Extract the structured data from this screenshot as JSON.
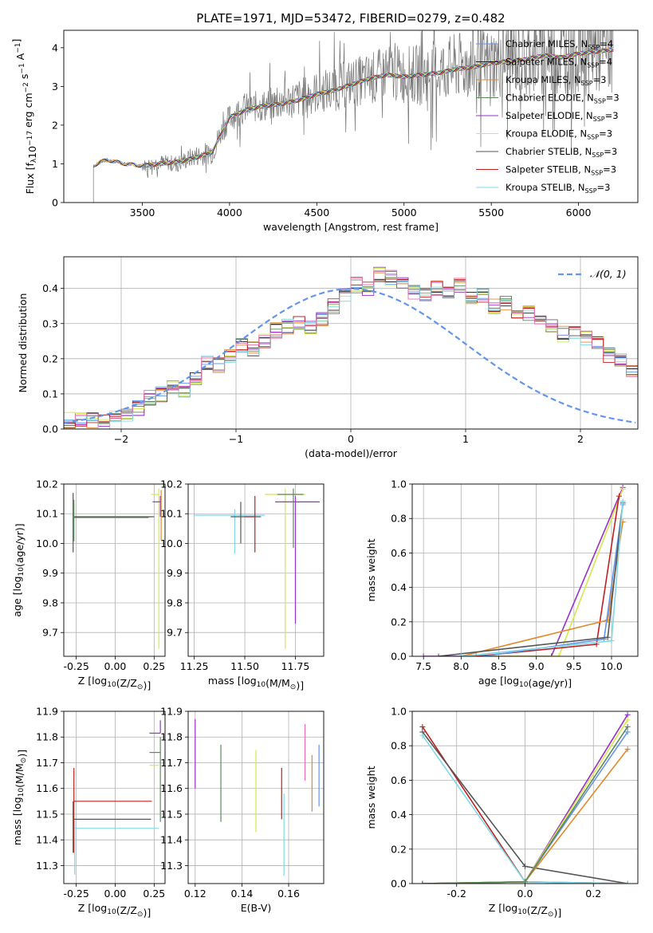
{
  "figure": {
    "title": "PLATE=1971, MJD=53472, FIBERID=0279, z=0.482",
    "colors": [
      "#6495ED",
      "#1a1a1a",
      "#e08a2c",
      "#5a8a5a",
      "#9a30c8",
      "#d4e84a",
      "#666666",
      "#c02020",
      "#80d8e8",
      "#e870b0"
    ]
  },
  "chart_data": [
    {
      "id": "spectrum",
      "type": "line",
      "title": "PLATE=1971, MJD=53472, FIBERID=0279, z=0.482",
      "xlabel": "wavelength [Angstrom, rest frame]",
      "ylabel": "Flux [f_λ 10^-17 erg cm^-2 s^-1 A^-1]",
      "xlim": [
        3050,
        6340
      ],
      "ylim": [
        0,
        4.45
      ],
      "xticks": [
        3500,
        4000,
        4500,
        5000,
        5500,
        6000
      ],
      "yticks": [
        0,
        1,
        2,
        3,
        4
      ],
      "legend_placement": "upper-right",
      "legend": [
        "Chabrier MILES, N_SSP=4",
        "Salpeter MILES, N_SSP=4",
        "Kroupa MILES, N_SSP=3",
        "Chabrier ELODIE, N_SSP=3",
        "Salpeter ELODIE, N_SSP=3",
        "Kroupa ELODIE, N_SSP=3",
        "Chabrier STELIB, N_SSP=3",
        "Salpeter STELIB, N_SSP=3",
        "Kroupa STELIB, N_SSP=3"
      ],
      "legend_colors": [
        "#6495ED",
        "#1a1a1a",
        "#e08a2c",
        "#5a8a5a",
        "#9a30c8",
        "#d4e84a",
        "#555555",
        "#c02020",
        "#80d8e8"
      ],
      "model_curve": {
        "x": [
          3220,
          3260,
          3300,
          3400,
          3500,
          3600,
          3700,
          3800,
          3900,
          3950,
          4000,
          4100,
          4200,
          4300,
          4400,
          4500,
          4600,
          4700,
          4800,
          4900,
          5000,
          5100,
          5200,
          5300,
          5400,
          5500,
          5600,
          5700,
          5800,
          5900,
          6000,
          6100,
          6200
        ],
        "y": [
          0.95,
          1.05,
          1.1,
          1.0,
          0.95,
          1.0,
          1.05,
          1.15,
          1.3,
          1.75,
          2.2,
          2.4,
          2.5,
          2.55,
          2.65,
          2.8,
          2.9,
          3.05,
          3.2,
          3.3,
          3.25,
          3.3,
          3.35,
          3.45,
          3.5,
          3.6,
          3.65,
          3.7,
          3.8,
          3.75,
          3.85,
          3.9,
          3.95
        ]
      },
      "data_curve": {
        "x": [
          3220,
          3260,
          3300,
          3400,
          3500,
          3600,
          3700,
          3800,
          3900,
          3950,
          4000,
          4100,
          4200,
          4300,
          4400,
          4500,
          4600,
          4700,
          4800,
          4900,
          5000,
          5100,
          5200,
          5300,
          5400,
          5500,
          5600,
          5700,
          5800,
          5900,
          6000,
          6100,
          6200
        ],
        "y": [
          0.95,
          1.05,
          1.1,
          1.0,
          0.95,
          1.05,
          1.0,
          1.2,
          1.3,
          1.8,
          2.2,
          2.45,
          2.5,
          2.6,
          2.7,
          2.85,
          2.95,
          3.1,
          3.2,
          3.35,
          3.3,
          3.3,
          3.4,
          3.5,
          3.55,
          3.6,
          3.7,
          3.75,
          3.8,
          3.8,
          3.9,
          3.95,
          4.0
        ],
        "noise_start": 3500
      }
    },
    {
      "id": "residuals",
      "type": "step",
      "xlabel": "(data-model)/error",
      "ylabel": "Normed distribution",
      "xlim": [
        -2.5,
        2.5
      ],
      "ylim": [
        0,
        0.49
      ],
      "xticks": [
        -2,
        -1,
        0,
        1,
        2
      ],
      "yticks": [
        0.0,
        0.1,
        0.2,
        0.3,
        0.4
      ],
      "legend": [
        "𝒩(0, 1)"
      ],
      "bin_width": 0.1,
      "base_histogram": {
        "x_start": -2.5,
        "values": [
          0.025,
          0.03,
          0.025,
          0.02,
          0.035,
          0.04,
          0.06,
          0.09,
          0.1,
          0.12,
          0.11,
          0.14,
          0.19,
          0.18,
          0.21,
          0.24,
          0.23,
          0.25,
          0.28,
          0.29,
          0.3,
          0.29,
          0.31,
          0.35,
          0.38,
          0.41,
          0.4,
          0.44,
          0.43,
          0.41,
          0.39,
          0.38,
          0.4,
          0.39,
          0.41,
          0.37,
          0.38,
          0.35,
          0.36,
          0.33,
          0.33,
          0.3,
          0.29,
          0.27,
          0.28,
          0.26,
          0.25,
          0.21,
          0.2,
          0.17,
          0.16,
          0.13,
          0.13,
          0.12,
          0.1,
          0.09,
          0.07,
          0.08,
          0.06,
          0.05,
          0.04,
          0.035,
          0.03,
          0.025,
          0.02,
          0.02,
          0.02,
          0.025,
          0.03,
          0.025
        ]
      }
    },
    {
      "id": "z-vs-age",
      "type": "errorbar",
      "xlabel": "Z [log10(Z/Z⊙)]",
      "ylabel": "age  [log10(age/yr)]",
      "xlim": [
        -0.33,
        0.32
      ],
      "ylim": [
        9.62,
        10.2
      ],
      "xticks": [
        -0.25,
        0.0,
        0.25
      ],
      "yticks": [
        9.7,
        9.8,
        9.9,
        10.0,
        10.1,
        10.2
      ],
      "points": [
        {
          "x": -0.27,
          "y": 10.09,
          "xerr": [
            0.0,
            0.52
          ],
          "yerr": [
            0.12,
            0.08
          ],
          "color": "#555555"
        },
        {
          "x": -0.265,
          "y": 10.087,
          "xerr": [
            0.0,
            0.48
          ],
          "yerr": [
            0.08,
            0.06
          ],
          "color": "#5a8a5a"
        },
        {
          "x": 0.28,
          "y": 10.165,
          "xerr": [
            0.05,
            0.0
          ],
          "yerr": [
            0.52,
            0.02
          ],
          "color": "#d4e84a"
        },
        {
          "x": 0.29,
          "y": 10.14,
          "xerr": [
            0.05,
            0.0
          ],
          "yerr": [
            0.05,
            0.02
          ],
          "color": "#9a30c8"
        },
        {
          "x": 0.295,
          "y": 10.16,
          "xerr": [
            0.0,
            0.0
          ],
          "yerr": [
            0.15,
            0.02
          ],
          "color": "#e08a2c"
        }
      ]
    },
    {
      "id": "mass-vs-age",
      "type": "errorbar",
      "xlabel": "mass [log10(M/M⊙)]",
      "ylabel": "",
      "xlim": [
        11.22,
        11.89
      ],
      "ylim": [
        9.62,
        10.2
      ],
      "xticks": [
        11.25,
        11.5,
        11.75
      ],
      "yticks": [
        9.7,
        9.8,
        9.9,
        10.0,
        10.1,
        10.2
      ],
      "points": [
        {
          "x": 11.45,
          "y": 10.095,
          "xerr": [
            0.2,
            0.15
          ],
          "yerr": [
            0.13,
            0.02
          ],
          "color": "#80d8e8"
        },
        {
          "x": 11.48,
          "y": 10.09,
          "xerr": [
            0.05,
            0.1
          ],
          "yerr": [
            0.09,
            0.05
          ],
          "color": "#555555"
        },
        {
          "x": 11.55,
          "y": 10.09,
          "xerr": [
            0.05,
            0.0
          ],
          "yerr": [
            0.12,
            0.07
          ],
          "color": "#c02020"
        },
        {
          "x": 11.7,
          "y": 10.165,
          "xerr": [
            0.1,
            0.1
          ],
          "yerr": [
            0.52,
            0.02
          ],
          "color": "#d4e84a"
        },
        {
          "x": 11.75,
          "y": 10.14,
          "xerr": [
            0.1,
            0.12
          ],
          "yerr": [
            0.41,
            0.02
          ],
          "color": "#9a30c8"
        },
        {
          "x": 11.74,
          "y": 10.165,
          "xerr": [
            0.08,
            0.05
          ],
          "yerr": [
            0.18,
            0.02
          ],
          "color": "#5a8a5a"
        }
      ]
    },
    {
      "id": "age-vs-weight",
      "type": "line",
      "xlabel": "age  [log10(age/yr)]",
      "ylabel": "mass weight",
      "xlim": [
        7.35,
        10.35
      ],
      "ylim": [
        0,
        1
      ],
      "xticks": [
        7.5,
        8.0,
        8.5,
        9.0,
        9.5,
        10.0
      ],
      "yticks": [
        0.0,
        0.2,
        0.4,
        0.6,
        0.8,
        1.0
      ],
      "series": [
        {
          "x": [
            7.5,
            9.2,
            10.15
          ],
          "y": [
            0.0,
            0.0,
            0.98
          ],
          "color": "#9a30c8"
        },
        {
          "x": [
            8.0,
            9.3,
            10.15
          ],
          "y": [
            0.0,
            0.0,
            0.97
          ],
          "color": "#d4e84a"
        },
        {
          "x": [
            8.2,
            9.8,
            10.1
          ],
          "y": [
            0.0,
            0.07,
            0.93
          ],
          "color": "#c02020"
        },
        {
          "x": [
            8.0,
            9.95,
            10.15
          ],
          "y": [
            0.0,
            0.21,
            0.78
          ],
          "color": "#e08a2c"
        },
        {
          "x": [
            8.3,
            9.9,
            10.15
          ],
          "y": [
            0.0,
            0.1,
            0.88
          ],
          "color": "#6495ED"
        },
        {
          "x": [
            7.7,
            9.95,
            10.15
          ],
          "y": [
            0.0,
            0.11,
            0.89
          ],
          "color": "#555555"
        },
        {
          "x": [
            8.0,
            10.0,
            10.15
          ],
          "y": [
            0.0,
            0.09,
            0.9
          ],
          "color": "#80d8e8"
        }
      ]
    },
    {
      "id": "z-vs-mass",
      "type": "errorbar",
      "xlabel": "Z [log10(Z/Z⊙)]",
      "ylabel": "mass [log10(M/M⊙)]",
      "xlim": [
        -0.33,
        0.32
      ],
      "ylim": [
        11.23,
        11.9
      ],
      "xticks": [
        -0.25,
        0.0,
        0.25
      ],
      "yticks": [
        11.3,
        11.4,
        11.5,
        11.6,
        11.7,
        11.8,
        11.9
      ],
      "points": [
        {
          "x": -0.265,
          "y": 11.55,
          "xerr": [
            0.0,
            0.5
          ],
          "yerr": [
            0.2,
            0.13
          ],
          "color": "#c02020"
        },
        {
          "x": -0.27,
          "y": 11.48,
          "xerr": [
            0.0,
            0.5
          ],
          "yerr": [
            0.13,
            0.07
          ],
          "color": "#555555"
        },
        {
          "x": -0.26,
          "y": 11.445,
          "xerr": [
            0.0,
            0.54
          ],
          "yerr": [
            0.18,
            0.03
          ],
          "color": "#80d8e8"
        },
        {
          "x": 0.29,
          "y": 11.815,
          "xerr": [
            0.07,
            0.0
          ],
          "yerr": [
            0.0,
            0.05
          ],
          "color": "#9a30c8"
        },
        {
          "x": 0.29,
          "y": 11.74,
          "xerr": [
            0.07,
            0.0
          ],
          "yerr": [
            0.27,
            0.06
          ],
          "color": "#5a8a5a"
        },
        {
          "x": 0.28,
          "y": 11.69,
          "xerr": [
            0.06,
            0.0
          ],
          "yerr": [
            0.0,
            0.0
          ],
          "color": "#d4e84a"
        }
      ]
    },
    {
      "id": "ebv-vs-mass",
      "type": "errorbar",
      "xlabel": "E(B-V)",
      "ylabel": "",
      "xlim": [
        0.117,
        0.175
      ],
      "ylim": [
        11.23,
        11.9
      ],
      "xticks": [
        0.12,
        0.14,
        0.16
      ],
      "yticks": [
        11.3,
        11.4,
        11.5,
        11.6,
        11.7,
        11.8,
        11.9
      ],
      "points": [
        {
          "x": 0.12,
          "y": 11.73,
          "yerr": [
            0.13,
            0.14
          ],
          "color": "#9a30c8"
        },
        {
          "x": 0.131,
          "y": 11.62,
          "yerr": [
            0.15,
            0.15
          ],
          "color": "#5a8a5a"
        },
        {
          "x": 0.146,
          "y": 11.59,
          "yerr": [
            0.16,
            0.16
          ],
          "color": "#d4e84a"
        },
        {
          "x": 0.157,
          "y": 11.58,
          "yerr": [
            0.1,
            0.1
          ],
          "color": "#c02020"
        },
        {
          "x": 0.158,
          "y": 11.42,
          "yerr": [
            0.16,
            0.16
          ],
          "color": "#80d8e8"
        },
        {
          "x": 0.167,
          "y": 11.74,
          "yerr": [
            0.11,
            0.11
          ],
          "color": "#e870b0"
        },
        {
          "x": 0.17,
          "y": 11.62,
          "yerr": [
            0.11,
            0.11
          ],
          "color": "#e08a2c"
        },
        {
          "x": 0.173,
          "y": 11.65,
          "yerr": [
            0.12,
            0.12
          ],
          "color": "#6495ED"
        }
      ]
    },
    {
      "id": "z-vs-weight",
      "type": "line",
      "xlabel": "Z [log10(Z/Z⊙)]",
      "ylabel": "mass weight",
      "xlim": [
        -0.33,
        0.33
      ],
      "ylim": [
        0,
        1
      ],
      "xticks": [
        -0.2,
        0.0,
        0.2
      ],
      "yticks": [
        0.0,
        0.2,
        0.4,
        0.6,
        0.8,
        1.0
      ],
      "series": [
        {
          "x": [
            -0.3,
            0.0,
            0.3
          ],
          "y": [
            0.91,
            0.01,
            0.0
          ],
          "color": "#c02020"
        },
        {
          "x": [
            -0.3,
            0.0,
            0.3
          ],
          "y": [
            0.88,
            0.1,
            0.0
          ],
          "color": "#555555"
        },
        {
          "x": [
            -0.3,
            0.0,
            0.3
          ],
          "y": [
            0.86,
            0.01,
            0.0
          ],
          "color": "#80d8e8"
        },
        {
          "x": [
            -0.3,
            0.0,
            0.3
          ],
          "y": [
            0.0,
            0.01,
            0.98
          ],
          "color": "#9a30c8"
        },
        {
          "x": [
            -0.3,
            0.0,
            0.3
          ],
          "y": [
            0.0,
            0.01,
            0.95
          ],
          "color": "#d4e84a"
        },
        {
          "x": [
            -0.3,
            0.0,
            0.3
          ],
          "y": [
            0.0,
            0.01,
            0.88
          ],
          "color": "#6495ED"
        },
        {
          "x": [
            -0.3,
            0.0,
            0.3
          ],
          "y": [
            0.0,
            0.01,
            0.78
          ],
          "color": "#e08a2c"
        },
        {
          "x": [
            -0.3,
            0.0,
            0.3
          ],
          "y": [
            0.0,
            0.01,
            0.91
          ],
          "color": "#5a8a5a"
        }
      ]
    }
  ]
}
